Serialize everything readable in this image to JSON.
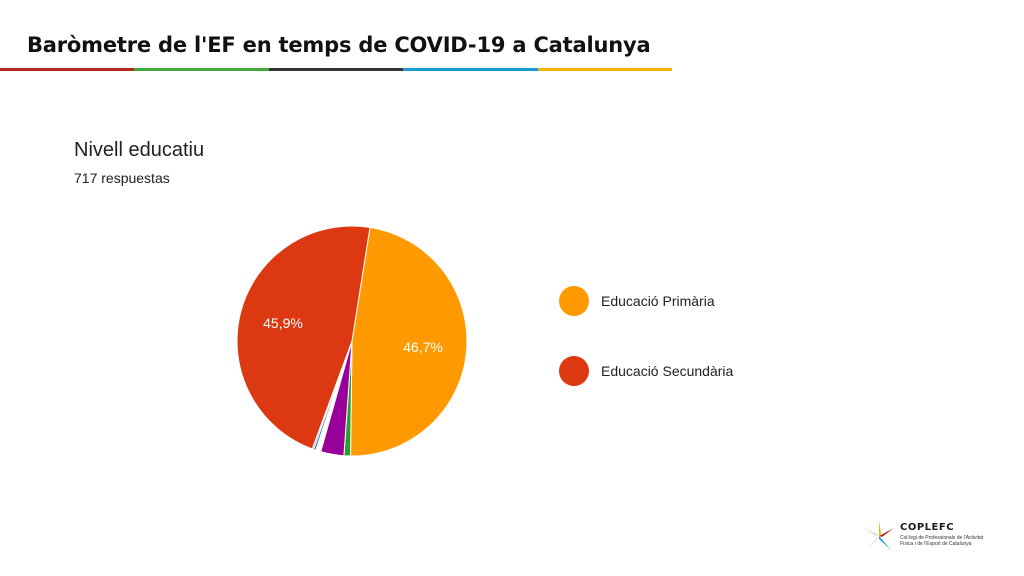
{
  "header": {
    "title": "Baròmetre de l'EF en temps de COVID-19 a Catalunya",
    "stripe_colors": [
      "#b1271c",
      "#43a83a",
      "#333333",
      "#1a9ad6",
      "#f0b400"
    ]
  },
  "chart_data": {
    "type": "pie",
    "title": "Nivell educatiu",
    "subtitle": "717 respuestas",
    "legend_position": "right",
    "slices": [
      {
        "name": "Educació Primària",
        "value": 46.7,
        "label": "46,7%",
        "color": "#ff9900"
      },
      {
        "name": "",
        "value": 0.9,
        "label": "",
        "color": "#2ca02c"
      },
      {
        "name": "",
        "value": 3.2,
        "label": "",
        "color": "#990099"
      },
      {
        "name": "",
        "value": 0.7,
        "label": "",
        "color": "#ffffff"
      },
      {
        "name": "",
        "value": 0.3,
        "label": "",
        "color": "#3366cc"
      },
      {
        "name": "",
        "value": 0.2,
        "label": "",
        "color": "#0099c6"
      },
      {
        "name": "Educació Secundària",
        "value": 45.9,
        "label": "45,9%",
        "color": "#dc3912"
      }
    ],
    "start_angle_deg": -81
  },
  "legend": [
    {
      "label": "Educació Primària",
      "color": "#ff9900"
    },
    {
      "label": "Educació Secundària",
      "color": "#dc3912"
    }
  ],
  "footer": {
    "logo_name": "COPLEFC",
    "logo_description": "Col·legi de Professionals de l'Activitat Física i de l'Esport de Catalunya"
  }
}
